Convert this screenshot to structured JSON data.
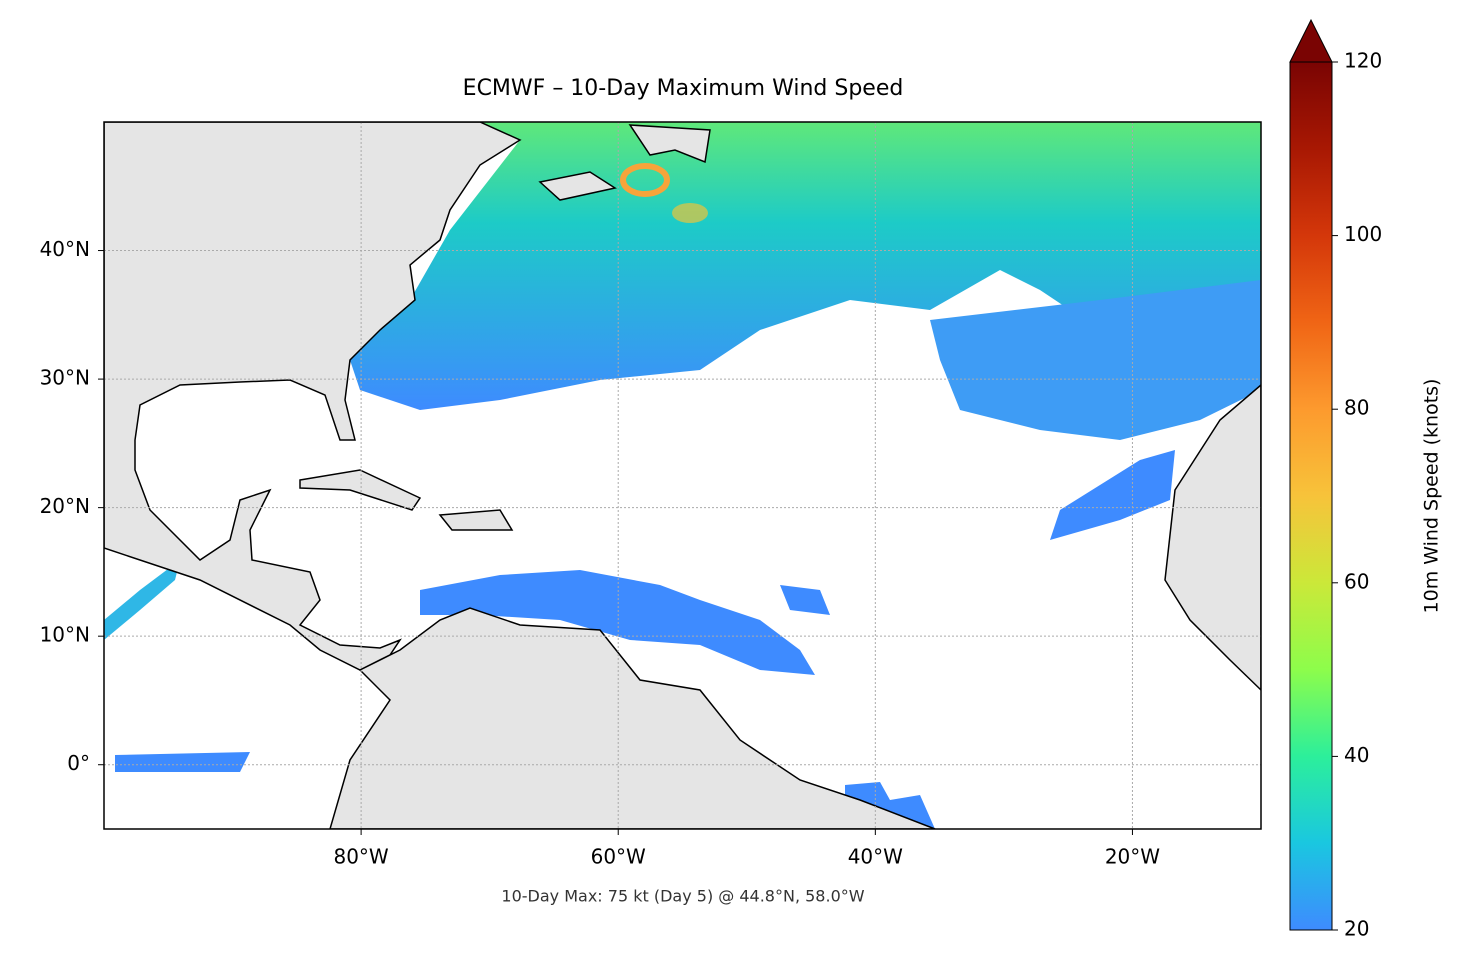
{
  "chart_data": {
    "type": "map",
    "title": "ECMWF – 10-Day Maximum Wind Speed",
    "annotation": "10-Day Max: 75 kt (Day 5) @ 44.8°N, 58.0°W",
    "xlim": [
      -100,
      -10
    ],
    "ylim": [
      -5,
      50
    ],
    "xticks": [
      {
        "value": -80,
        "label": "80°W"
      },
      {
        "value": -60,
        "label": "60°W"
      },
      {
        "value": -40,
        "label": "40°W"
      },
      {
        "value": -20,
        "label": "20°W"
      }
    ],
    "yticks": [
      {
        "value": 0,
        "label": "0°"
      },
      {
        "value": 10,
        "label": "10°N"
      },
      {
        "value": 20,
        "label": "20°N"
      },
      {
        "value": 30,
        "label": "30°N"
      },
      {
        "value": 40,
        "label": "40°N"
      }
    ],
    "grid": true,
    "colorbar": {
      "label": "10m Wind Speed (knots)",
      "lim": [
        20,
        120
      ],
      "ticks": [
        20,
        40,
        60,
        80,
        100,
        120
      ],
      "extend": "max",
      "colors": [
        "#3e8bff",
        "#1ac7e0",
        "#2cef9b",
        "#8dfd4b",
        "#cbe839",
        "#f7c33a",
        "#fd9a2e",
        "#f06515",
        "#d4370a",
        "#a81803",
        "#7a0403"
      ]
    }
  }
}
